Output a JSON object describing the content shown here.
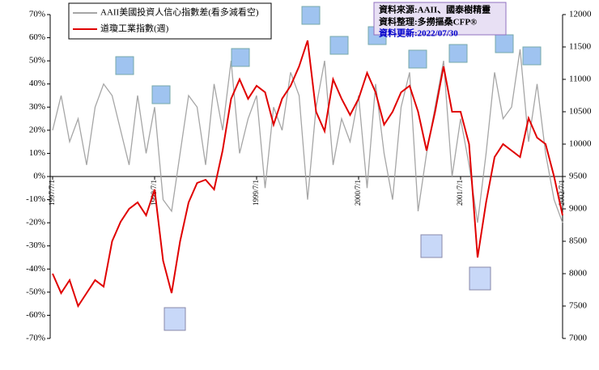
{
  "chart_data": {
    "type": "line",
    "categories": [
      "1997/7/1",
      null,
      null,
      null,
      null,
      null,
      null,
      null,
      null,
      null,
      null,
      null,
      "1998/7/1",
      null,
      null,
      null,
      null,
      null,
      null,
      null,
      null,
      null,
      null,
      null,
      "1999/7/1",
      null,
      null,
      null,
      null,
      null,
      null,
      null,
      null,
      null,
      null,
      null,
      "2000/7/1",
      null,
      null,
      null,
      null,
      null,
      null,
      null,
      null,
      null,
      null,
      null,
      "2001/7/1",
      null,
      null,
      null,
      null,
      null,
      null,
      null,
      null,
      null,
      null,
      null,
      "2002/7/1"
    ],
    "series": [
      {
        "name": "AAII美國投資人信心指數差(看多減看空)",
        "color": "#a6a6a6",
        "values": [
          20,
          35,
          15,
          25,
          5,
          30,
          40,
          35,
          20,
          5,
          35,
          10,
          30,
          -10,
          -15,
          10,
          35,
          30,
          5,
          40,
          20,
          50,
          10,
          25,
          35,
          -5,
          30,
          20,
          45,
          35,
          -10,
          30,
          50,
          5,
          25,
          15,
          35,
          -5,
          40,
          10,
          -10,
          30,
          45,
          -15,
          10,
          30,
          50,
          0,
          25,
          5,
          -20,
          10,
          45,
          25,
          30,
          55,
          15,
          40,
          10,
          -10,
          -20
        ]
      },
      {
        "name": "道瓊工業指數(週)",
        "color": "#e00000",
        "axis": "y2",
        "values": [
          8000,
          7700,
          7900,
          7500,
          7700,
          7900,
          7800,
          8500,
          8800,
          9000,
          9100,
          8900,
          9300,
          8200,
          7700,
          8500,
          9100,
          9400,
          9450,
          9300,
          9900,
          10700,
          11000,
          10700,
          10900,
          10800,
          10300,
          10700,
          10900,
          11200,
          11600,
          10500,
          10200,
          11000,
          10700,
          10450,
          10700,
          11100,
          10800,
          10300,
          10500,
          10800,
          10900,
          10500,
          9900,
          10500,
          11200,
          10500,
          10500,
          10000,
          8250,
          9100,
          9800,
          10000,
          9900,
          9800,
          10400,
          10100,
          10000,
          9500,
          8900
        ]
      }
    ],
    "ylim": [
      -70,
      70
    ],
    "yticks": [
      {
        "value": -70,
        "label": "-70%"
      },
      {
        "value": -60,
        "label": "-60%"
      },
      {
        "value": -50,
        "label": "-50%"
      },
      {
        "value": -40,
        "label": "-40%"
      },
      {
        "value": -30,
        "label": "-30%"
      },
      {
        "value": -20,
        "label": "-20%"
      },
      {
        "value": -10,
        "label": "-10%"
      },
      {
        "value": 0,
        "label": "0%"
      },
      {
        "value": 10,
        "label": "10%"
      },
      {
        "value": 20,
        "label": "20%"
      },
      {
        "value": 30,
        "label": "30%"
      },
      {
        "value": 40,
        "label": "40%"
      },
      {
        "value": 50,
        "label": "50%"
      },
      {
        "value": 60,
        "label": "60%"
      },
      {
        "value": 70,
        "label": "70%"
      }
    ],
    "y2lim": [
      7000,
      12000
    ],
    "y2ticks": [
      7000,
      7500,
      8000,
      8500,
      9000,
      9500,
      10000,
      10500,
      11000,
      11500,
      12000
    ],
    "annotations": [
      "資料來源:AAII、國泰樹精靈",
      "資料整理:多撈摳桑CFP®",
      "資料更新:2022/07/30"
    ]
  }
}
